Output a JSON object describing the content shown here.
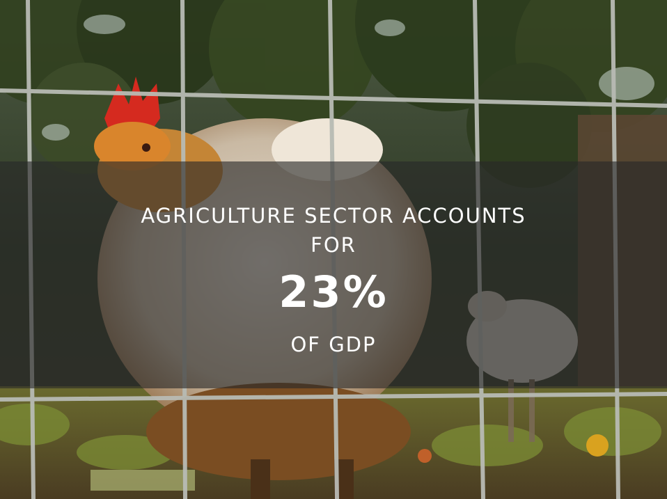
{
  "headline": {
    "line1": "AGRICULTURE SECTOR ACCOUNTS",
    "line2": "FOR",
    "stat": "23%",
    "line3": "OF GDP"
  },
  "colors": {
    "text": "#ffffff",
    "overlay": "rgba(40,40,40,0.62)"
  }
}
